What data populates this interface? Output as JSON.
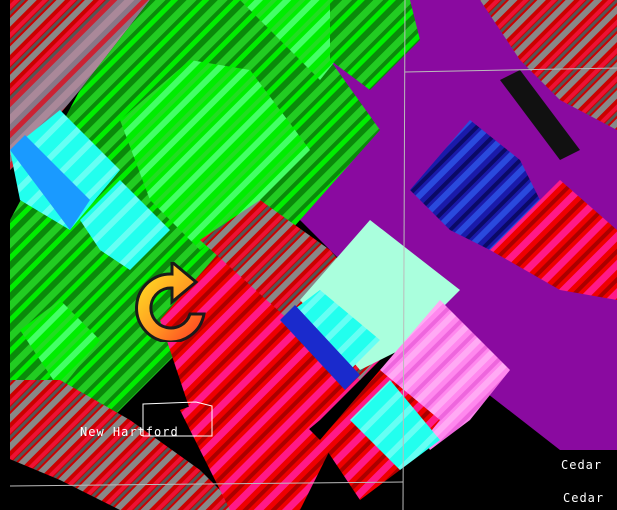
{
  "map": {
    "places": {
      "new_hartford": "New Hartford",
      "cedar_1": "Cedar",
      "cedar_2": "Cedar"
    },
    "loading_icon": "refresh-spinner-icon",
    "colors": {
      "background": "#000000",
      "purple": "#8a0aa0",
      "green_bright": "#00ee00",
      "green_dark": "#0a8a0a",
      "green_mid": "#22cc22",
      "green_light": "#44ff88",
      "cyan": "#22ffee",
      "aqua_pale": "#aaffdd",
      "sky_blue": "#1a9aff",
      "blue": "#1a1aaa",
      "red": "#ee0000",
      "dark_red": "#aa0000",
      "hot_pink": "#ff1a88",
      "pink": "#ff88ee",
      "gray": "#888888",
      "boundary_line": "#bbbbbb",
      "label_text": "#ffffff"
    }
  }
}
